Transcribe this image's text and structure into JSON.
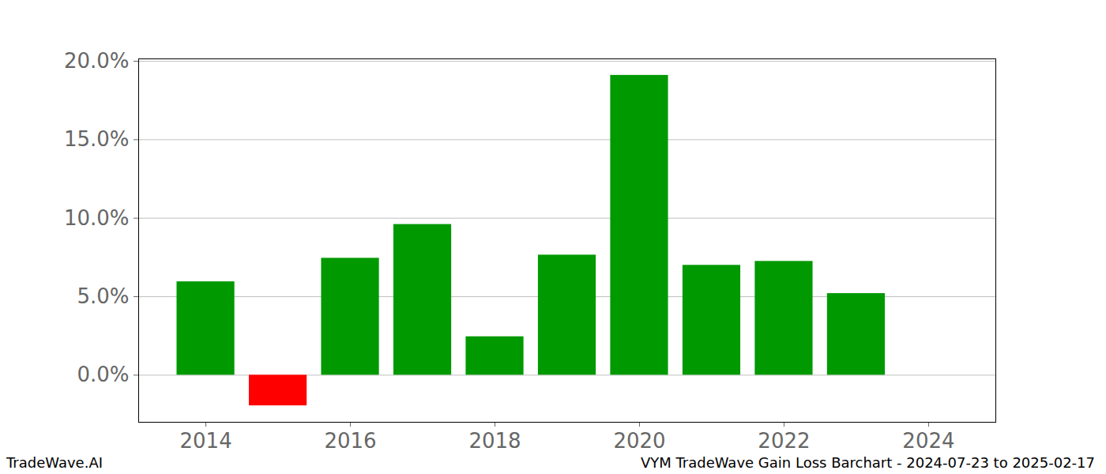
{
  "chart_data": {
    "type": "bar",
    "title": "VYM TradeWave Gain Loss Barchart - 2024-07-23 to 2025-02-17",
    "source": "TradeWave.AI",
    "x": [
      2014,
      2015,
      2016,
      2017,
      2018,
      2019,
      2020,
      2021,
      2022,
      2023
    ],
    "values": [
      5.95,
      -1.95,
      7.45,
      9.6,
      2.45,
      7.65,
      19.1,
      7.0,
      7.25,
      5.2
    ],
    "colors": [
      "#009900",
      "#ff0000",
      "#009900",
      "#009900",
      "#009900",
      "#009900",
      "#009900",
      "#009900",
      "#009900",
      "#009900"
    ],
    "xlim": [
      2013.07,
      2024.93
    ],
    "xticks": [
      2014,
      2016,
      2018,
      2020,
      2022,
      2024
    ],
    "ylim": [
      -3.0,
      20.15
    ],
    "yticks": [
      {
        "value": 0,
        "label": "0.0%"
      },
      {
        "value": 5,
        "label": "5.0%"
      },
      {
        "value": 10,
        "label": "10.0%"
      },
      {
        "value": 15,
        "label": "15.0%"
      },
      {
        "value": 20,
        "label": "20.0%"
      }
    ],
    "grid": true
  }
}
